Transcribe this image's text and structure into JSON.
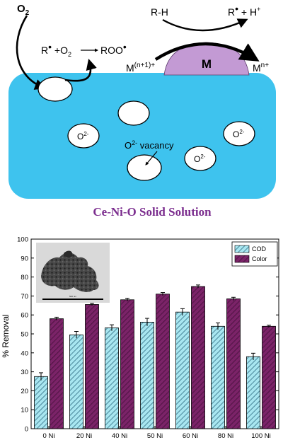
{
  "scheme": {
    "o2": "O",
    "o2_sub": "2",
    "reaction_r": "R",
    "reaction_plus": " +O",
    "reaction_sub": "2",
    "reaction_product": "ROO",
    "rh": "R-H",
    "products_r": "R",
    "products_h": " + H",
    "products_h_sup": "+",
    "metal": "M",
    "m_left": "M",
    "m_left_sup": "(n+1)+",
    "m_right": "M",
    "m_right_sup": "n+",
    "oxide_ion": "O",
    "oxide_sup": "2-",
    "vacancy_label": "O",
    "vacancy_sup": "2-",
    "vacancy_word": " vacancy",
    "caption": "Ce-Ni-O Solid Solution",
    "colors": {
      "support": "#3ec3ee",
      "metal": "#c39ad4",
      "caption": "#7b2d8e"
    }
  },
  "chart_data": {
    "type": "bar",
    "categories": [
      "0 Ni",
      "20 Ni",
      "40 Ni",
      "50 Ni",
      "60 Ni",
      "80 Ni",
      "100 Ni"
    ],
    "series": [
      {
        "name": "COD",
        "values": [
          27.5,
          49.5,
          53.2,
          56.2,
          61.5,
          54,
          38
        ],
        "errors": [
          2,
          1.8,
          1.6,
          2,
          1.8,
          1.8,
          1.8
        ],
        "color": "#a8e6f0",
        "pattern": "diagonal-hatch"
      },
      {
        "name": "Color",
        "values": [
          58,
          65.5,
          68,
          71,
          75,
          68.5,
          54
        ],
        "errors": [
          0.8,
          0.6,
          0.8,
          0.8,
          0.8,
          0.8,
          0.6
        ],
        "color": "#7b2368",
        "pattern": "diagonal-hatch"
      }
    ],
    "ylabel": "% Removal",
    "xlabel": "",
    "ylim": [
      0,
      100
    ],
    "yticks": [
      0,
      10,
      20,
      30,
      40,
      50,
      60,
      70,
      80,
      90,
      100
    ],
    "legend_position": "top-right",
    "inset_scale_label": "500 nm"
  }
}
